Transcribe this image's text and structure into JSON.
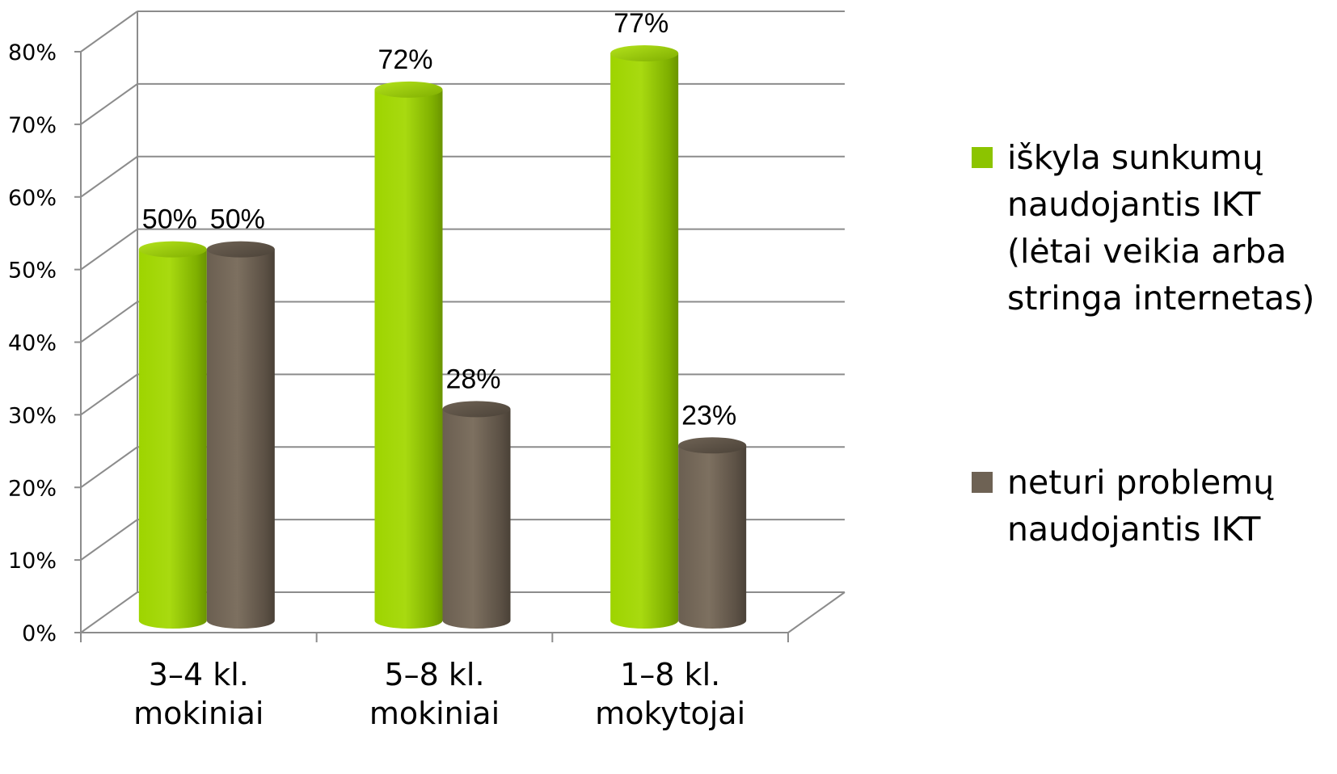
{
  "chart_data": {
    "type": "bar",
    "categories": [
      [
        "3–4 kl.",
        "mokiniai"
      ],
      [
        "5–8 kl.",
        "mokiniai"
      ],
      [
        "1–8 kl.",
        "mokytojai"
      ]
    ],
    "series": [
      {
        "name": "iškyla sunkumų naudojantis IKT (lėtai veikia arba stringa internetas)",
        "legend_lines": [
          "iškyla sunkumų",
          "naudojantis IKT",
          "(lėtai veikia arba",
          "stringa internetas)"
        ],
        "values": [
          50,
          72,
          77
        ],
        "value_labels": [
          "50%",
          "72%",
          "77%"
        ],
        "color": "#8cc400"
      },
      {
        "name": "neturi problemų naudojantis IKT",
        "legend_lines": [
          "neturi problemų",
          "naudojantis IKT"
        ],
        "values": [
          50,
          28,
          23
        ],
        "value_labels": [
          "50%",
          "28%",
          "23%"
        ],
        "color": "#6e6254"
      }
    ],
    "ylim": [
      0,
      80
    ],
    "y_ticks": [
      "0%",
      "10%",
      "20%",
      "30%",
      "40%",
      "50%",
      "60%",
      "70%",
      "80%"
    ],
    "grid": true,
    "three_d": true,
    "bar_shape": "cylinder",
    "legend_position": "right"
  }
}
